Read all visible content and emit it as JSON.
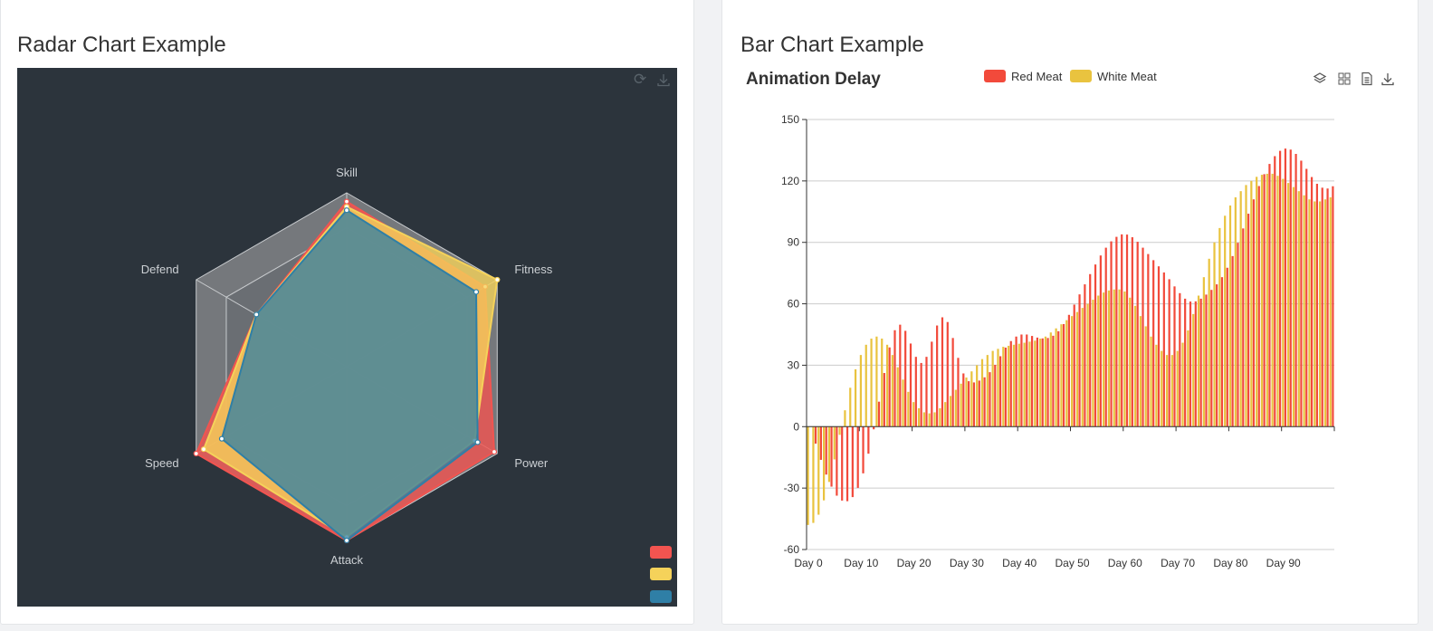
{
  "radar_card": {
    "title": "Radar Chart Example",
    "toolbar": {
      "restore_icon": "refresh-icon",
      "save_icon": "download-icon"
    }
  },
  "bar_card": {
    "title": "Bar Chart Example",
    "toolbar": {
      "stack_icon": "layers-icon",
      "dataview_icon": "grid-icon",
      "text_icon": "document-icon",
      "save_icon": "download-icon"
    }
  },
  "colors": {
    "red": "#f25450",
    "yellow": "#f5d25a",
    "blue": "#2f7fa6",
    "bar_red": "#f24a3b",
    "bar_yellow": "#e9c33f",
    "radar_bg": "#2c343c"
  },
  "chart_data": [
    {
      "type": "radar",
      "title": "",
      "indicators": [
        "Skill",
        "Fitness",
        "Power",
        "Attack",
        "Speed",
        "Defend"
      ],
      "max": 100,
      "inner_ring": 80,
      "series": [
        {
          "name": "",
          "color": "#f25450",
          "values": [
            95,
            92,
            98,
            100,
            100,
            60
          ]
        },
        {
          "name": "",
          "color": "#f5d25a",
          "values": [
            92,
            100,
            85,
            98,
            95,
            60
          ]
        },
        {
          "name": "",
          "color": "#2f7fa6",
          "values": [
            90,
            86,
            87,
            100,
            83,
            60
          ]
        }
      ],
      "legend": [
        "",
        "",
        ""
      ],
      "legend_position": "bottom-right"
    },
    {
      "type": "bar",
      "title": "Animation Delay",
      "legend": [
        "Red Meat",
        "White Meat"
      ],
      "x_tick_labels": [
        "Day 0",
        "Day 10",
        "Day 20",
        "Day 30",
        "Day 40",
        "Day 50",
        "Day 60",
        "Day 70",
        "Day 80",
        "Day 90"
      ],
      "x_count": 100,
      "ylim": [
        -60,
        150
      ],
      "y_ticks": [
        -60,
        -30,
        0,
        30,
        60,
        90,
        120,
        150
      ],
      "series": [
        {
          "name": "Red Meat",
          "color": "#f24a3b",
          "values": [
            0.0,
            -8.3,
            -16.2,
            -23.4,
            -29.3,
            -33.7,
            -36.1,
            -36.4,
            -34.4,
            -29.9,
            -22.8,
            -13.2,
            -1.3,
            12.2,
            26.2,
            38.7,
            47.1,
            49.8,
            46.8,
            40.6,
            34.1,
            31.1,
            34.1,
            41.5,
            49.4,
            53.4,
            51.1,
            43.3,
            33.6,
            26.0,
            22.2,
            21.6,
            22.5,
            24.1,
            26.6,
            30.2,
            34.4,
            38.6,
            41.8,
            44.0,
            45.0,
            45.0,
            44.3,
            43.5,
            43.1,
            43.3,
            44.4,
            46.6,
            50.1,
            54.6,
            59.6,
            64.6,
            69.5,
            74.5,
            79.2,
            83.6,
            87.4,
            90.5,
            92.7,
            93.9,
            93.8,
            92.5,
            90.3,
            87.4,
            84.3,
            81.3,
            78.3,
            75.3,
            72.0,
            68.5,
            65.2,
            62.5,
            61.1,
            61.2,
            62.5,
            64.5,
            66.8,
            69.5,
            73.0,
            77.6,
            83.3,
            89.8,
            96.8,
            104.0,
            111.0,
            117.5,
            123.3,
            128.3,
            132.1,
            134.7,
            135.8,
            135.3,
            133.2,
            129.9,
            125.9,
            121.9,
            118.6,
            116.7,
            116.3,
            117.4
          ]
        },
        {
          "name": "White Meat",
          "color": "#e9c33f",
          "values": [
            -48.0,
            -47.0,
            -43.0,
            -36.0,
            -27.0,
            -16.0,
            -4.0,
            8.0,
            19.0,
            28.0,
            35.0,
            40.0,
            43.0,
            44.0,
            43.0,
            40.0,
            35.0,
            29.0,
            23.0,
            17.0,
            12.0,
            9.0,
            7.0,
            6.5,
            7.0,
            9.0,
            12.0,
            15.0,
            18.0,
            21.0,
            24.0,
            27.0,
            30.0,
            33.0,
            35.0,
            37.0,
            38.0,
            39.0,
            39.5,
            40.0,
            40.5,
            41.0,
            41.5,
            42.0,
            43.0,
            44.0,
            46.0,
            48.0,
            50.0,
            52.0,
            54.0,
            56.0,
            58.0,
            60.0,
            62.0,
            64.0,
            65.5,
            66.5,
            67.0,
            67.0,
            66.0,
            63.0,
            59.0,
            54.0,
            49.0,
            44.0,
            40.0,
            37.0,
            35.0,
            35.0,
            37.0,
            41.0,
            47.0,
            55.0,
            64.0,
            73.0,
            82.0,
            90.0,
            97.0,
            103.0,
            108.0,
            112.0,
            115.0,
            118.0,
            120.0,
            122.0,
            123.0,
            123.5,
            123.5,
            122.5,
            121.0,
            119.0,
            117.0,
            115.0,
            113.0,
            111.0,
            110.0,
            110.0,
            111.0,
            112.0
          ]
        }
      ]
    }
  ]
}
